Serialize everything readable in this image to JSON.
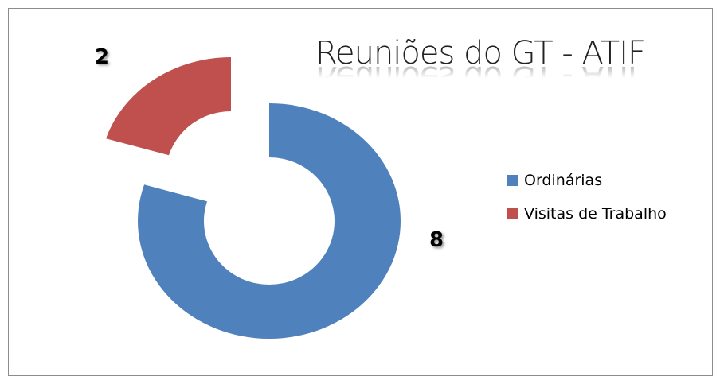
{
  "chart_data": {
    "type": "pie",
    "title": "Reuniões do GT - ATIF",
    "categories": [
      "Ordinárias",
      "Visitas de Trabalho"
    ],
    "values": [
      8,
      2
    ],
    "colors": [
      "#4f81bd",
      "#c0504d"
    ],
    "donut": true,
    "legend": "right"
  }
}
